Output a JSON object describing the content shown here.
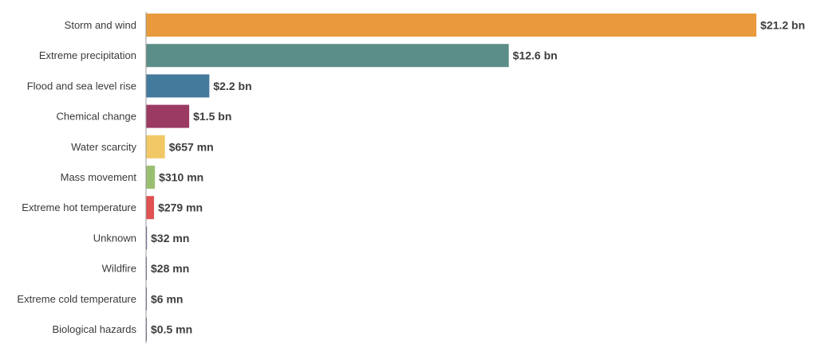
{
  "chart_data": {
    "type": "bar",
    "orientation": "horizontal",
    "title": "",
    "xlabel": "",
    "ylabel": "",
    "unit": "USD millions",
    "xlim": [
      0,
      21200
    ],
    "grid": false,
    "legend": "none",
    "categories": [
      "Storm and wind",
      "Extreme precipitation",
      "Flood and sea level rise",
      "Chemical change",
      "Water scarcity",
      "Mass movement",
      "Extreme hot temperature",
      "Unknown",
      "Wildfire",
      "Extreme cold temperature",
      "Biological hazards"
    ],
    "values": [
      21200,
      12600,
      2200,
      1500,
      657,
      310,
      279,
      32,
      28,
      6,
      0.5
    ],
    "value_labels": [
      "$21.2 bn",
      "$12.6 bn",
      "$2.2 bn",
      "$1.5 bn",
      "$657 mn",
      "$310 mn",
      "$279 mn",
      "$32 mn",
      "$28 mn",
      "$6 mn",
      "$0.5 mn"
    ],
    "colors": [
      "#e89a3c",
      "#5b8e88",
      "#447a9c",
      "#9b3a63",
      "#f2c866",
      "#9bbf72",
      "#e05252",
      "#5a4a7a",
      "#5a4a7a",
      "#5a4a7a",
      "#5a4a7a"
    ]
  }
}
